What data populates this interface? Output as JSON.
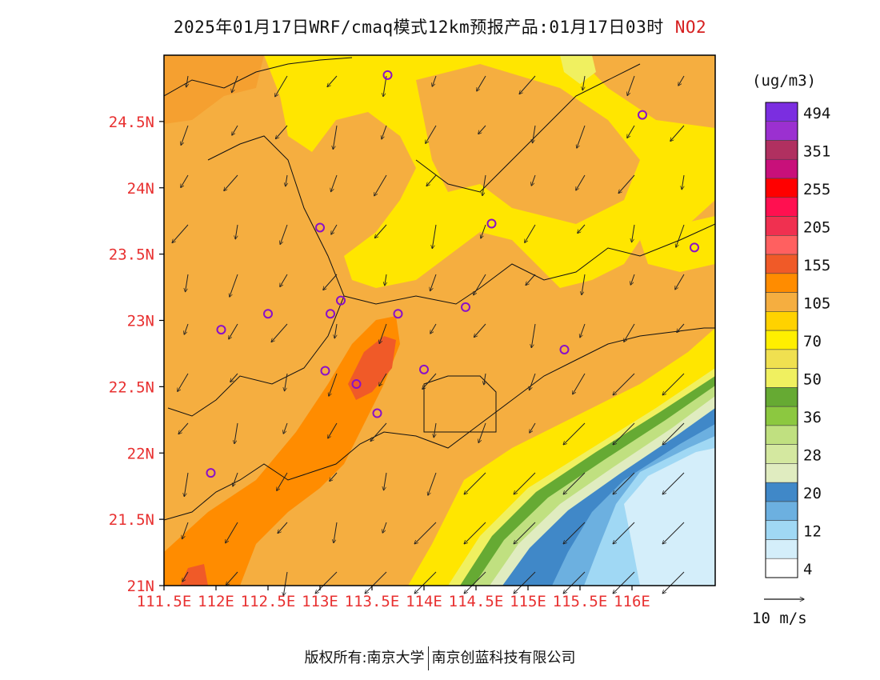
{
  "title": {
    "main": "2025年01月17日WRF/cmaq模式12km预报产品:01月17日03时",
    "species": "NO2",
    "species_color": "#d62020"
  },
  "map": {
    "lat_ticks": [
      "24.5N",
      "24N",
      "23.5N",
      "23N",
      "22.5N",
      "22N",
      "21.5N",
      "21N"
    ],
    "lon_ticks": [
      "111.5E",
      "112E",
      "112.5E",
      "113E",
      "113.5E",
      "114E",
      "114.5E",
      "115E",
      "115.5E",
      "116E"
    ],
    "tick_color": "#e83030",
    "extent": {
      "lon_min": 111.5,
      "lon_max": 116.8,
      "lat_min": 21.0,
      "lat_max": 25.0
    }
  },
  "colorbar": {
    "unit": "(ug/m3)",
    "levels": [
      {
        "color": "#7b2ee0",
        "label": "494"
      },
      {
        "color": "#9b30d0",
        "label": ""
      },
      {
        "color": "#b03060",
        "label": "351"
      },
      {
        "color": "#c8107a",
        "label": ""
      },
      {
        "color": "#ff0000",
        "label": "255"
      },
      {
        "color": "#ff1050",
        "label": ""
      },
      {
        "color": "#f03050",
        "label": "205"
      },
      {
        "color": "#ff6060",
        "label": ""
      },
      {
        "color": "#f05a28",
        "label": "155"
      },
      {
        "color": "#ff8c00",
        "label": ""
      },
      {
        "color": "#f5ae40",
        "label": "105"
      },
      {
        "color": "#ffd200",
        "label": ""
      },
      {
        "color": "#ffef00",
        "label": "70"
      },
      {
        "color": "#f0e050",
        "label": ""
      },
      {
        "color": "#f0f060",
        "label": "50"
      },
      {
        "color": "#66aa33",
        "label": ""
      },
      {
        "color": "#8cc840",
        "label": "36"
      },
      {
        "color": "#c0e080",
        "label": ""
      },
      {
        "color": "#d4e8a0",
        "label": "28"
      },
      {
        "color": "#e0ecc0",
        "label": ""
      },
      {
        "color": "#4088c8",
        "label": "20"
      },
      {
        "color": "#6cb0e0",
        "label": ""
      },
      {
        "color": "#a0d8f4",
        "label": "12"
      },
      {
        "color": "#d4eefa",
        "label": ""
      },
      {
        "color": "#ffffff",
        "label": "4"
      }
    ]
  },
  "wind": {
    "reference_label": "10 m/s"
  },
  "stations": [
    {
      "lon": 113.65,
      "lat": 24.85
    },
    {
      "lon": 116.1,
      "lat": 24.55
    },
    {
      "lon": 113.0,
      "lat": 23.7
    },
    {
      "lon": 114.65,
      "lat": 23.73
    },
    {
      "lon": 116.6,
      "lat": 23.55
    },
    {
      "lon": 113.2,
      "lat": 23.15
    },
    {
      "lon": 112.5,
      "lat": 23.05
    },
    {
      "lon": 113.1,
      "lat": 23.05
    },
    {
      "lon": 113.75,
      "lat": 23.05
    },
    {
      "lon": 114.4,
      "lat": 23.1
    },
    {
      "lon": 112.05,
      "lat": 22.93
    },
    {
      "lon": 115.35,
      "lat": 22.78
    },
    {
      "lon": 113.05,
      "lat": 22.62
    },
    {
      "lon": 114.0,
      "lat": 22.63
    },
    {
      "lon": 113.35,
      "lat": 22.52
    },
    {
      "lon": 113.55,
      "lat": 22.3
    },
    {
      "lon": 111.95,
      "lat": 21.85
    }
  ],
  "footer": {
    "left": "版权所有:南京大学",
    "right": "南京创蓝科技有限公司"
  }
}
